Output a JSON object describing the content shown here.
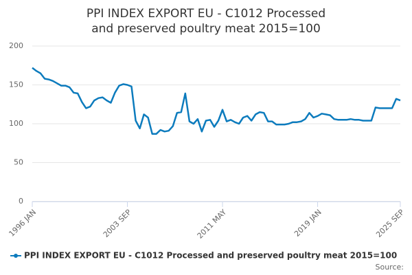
{
  "chart_data": {
    "type": "line",
    "title": "PPI INDEX EXPORT EU - C1012 Processed and preserved poultry meat 2015=100",
    "source": "Source:",
    "categories": [
      "1996 JAN",
      null,
      null,
      null,
      null,
      null,
      null,
      null,
      null,
      null,
      null,
      null,
      null,
      null,
      null,
      null,
      null,
      null,
      null,
      null,
      null,
      null,
      null,
      "2003 SEP",
      null,
      null,
      null,
      null,
      null,
      null,
      null,
      null,
      null,
      null,
      null,
      null,
      null,
      null,
      null,
      null,
      null,
      null,
      null,
      null,
      null,
      null,
      "2011 MAY",
      null,
      null,
      null,
      null,
      null,
      null,
      null,
      null,
      null,
      null,
      null,
      null,
      null,
      null,
      null,
      null,
      null,
      null,
      null,
      null,
      null,
      null,
      "2019 JAN",
      null,
      null,
      null,
      null,
      null,
      null,
      null,
      null,
      null,
      null,
      null,
      null,
      null,
      null,
      null,
      null,
      null,
      null,
      null,
      "2025 SEP"
    ],
    "series": [
      {
        "name": "PPI INDEX EXPORT EU - C1012 Processed and preserved poultry meat 2015=100",
        "color": "#0c7bbd",
        "values": [
          172,
          168,
          165,
          158,
          157,
          155,
          152,
          149,
          149,
          147,
          140,
          139,
          128,
          120,
          122,
          130,
          133,
          134,
          130,
          127,
          140,
          149,
          151,
          150,
          148,
          104,
          94,
          112,
          108,
          87,
          87,
          92,
          90,
          91,
          97,
          114,
          115,
          139,
          103,
          100,
          106,
          90,
          104,
          105,
          96,
          104,
          118,
          103,
          105,
          102,
          100,
          108,
          110,
          104,
          112,
          115,
          114,
          103,
          103,
          99,
          99,
          99,
          100,
          102,
          102,
          103,
          106,
          114,
          108,
          110,
          113,
          112,
          111,
          106,
          105,
          105,
          105,
          106,
          105,
          105,
          104,
          104,
          104,
          121,
          120,
          120,
          120,
          120,
          132,
          130
        ]
      }
    ],
    "ylim": [
      0,
      200
    ],
    "yticks": [
      0,
      50,
      100,
      150,
      200
    ],
    "grid": true
  }
}
